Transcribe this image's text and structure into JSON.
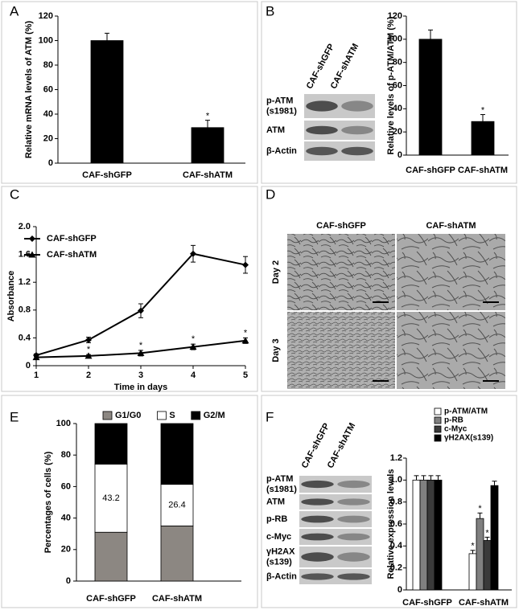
{
  "chart_data": [
    {
      "type": "bar",
      "panel": "A",
      "ylabel": "Relative mRNA  levels of ATM (%)",
      "categories": [
        "CAF-shGFP",
        "CAF-shATM"
      ],
      "values": [
        100,
        29
      ],
      "errors": [
        6,
        6
      ],
      "value_notes": [
        null,
        "*"
      ],
      "color": "#000000",
      "ylim": [
        0,
        120
      ],
      "yticks": [
        0,
        20,
        40,
        60,
        80,
        100,
        120
      ]
    },
    {
      "type": "bar",
      "panel": "B",
      "ylabel": "Relative levels of p-ATM/ATM (%)",
      "categories": [
        "CAF-shGFP",
        "CAF-shATM"
      ],
      "values": [
        100,
        29
      ],
      "errors": [
        8,
        6
      ],
      "value_notes": [
        null,
        "*"
      ],
      "color": "#000000",
      "ylim": [
        0,
        120
      ],
      "yticks": [
        0,
        20,
        40,
        60,
        80,
        100,
        120
      ],
      "blot": {
        "lanes": [
          "CAF-shGFP",
          "CAF-shATM"
        ],
        "rows": [
          [
            "p-ATM",
            "(s1981)"
          ],
          [
            "ATM"
          ],
          [
            "β-Actin"
          ]
        ]
      }
    },
    {
      "type": "line",
      "panel": "C",
      "xlabel": "Time in days",
      "ylabel": "Absorbance",
      "x": [
        1,
        2,
        3,
        4,
        5
      ],
      "series": [
        {
          "name": "CAF-shGFP",
          "color": "#000000",
          "marker": "diamond",
          "values": [
            0.15,
            0.37,
            0.79,
            1.61,
            1.45
          ],
          "errors": [
            0.02,
            0.04,
            0.1,
            0.12,
            0.12
          ]
        },
        {
          "name": "CAF-shATM",
          "color": "#000000",
          "marker": "triangle",
          "values": [
            0.12,
            0.14,
            0.18,
            0.27,
            0.36
          ],
          "errors": [
            0.02,
            0.02,
            0.04,
            0.04,
            0.04
          ],
          "value_notes": [
            null,
            "*",
            "*",
            "*",
            "*"
          ]
        }
      ],
      "xlim": [
        1,
        5
      ],
      "xticks": [
        1,
        2,
        3,
        4,
        5
      ],
      "ylim": [
        0,
        2
      ],
      "yticks": [
        0,
        0.4,
        0.8,
        1.2,
        1.6,
        {
          "value": 2,
          "label": "2.0"
        }
      ],
      "legend": "upper left"
    },
    {
      "type": "micrograph",
      "panel": "D",
      "columns": [
        "CAF-shGFP",
        "CAF-shATM"
      ],
      "rows": [
        "Day 2",
        "Day 3"
      ]
    },
    {
      "type": "stacked_bar",
      "panel": "E",
      "ylabel": "Percentages of cells (%)",
      "categories": [
        "CAF-shGFP",
        "CAF-shATM"
      ],
      "series": [
        {
          "name": "G1/G0",
          "color": "#8c8782",
          "values": [
            31,
            35
          ]
        },
        {
          "name": "S",
          "color": "#ffffff",
          "values": [
            43.2,
            26.4
          ],
          "show_values": true
        },
        {
          "name": "G2/M",
          "color": "#000000",
          "values": [
            25.8,
            38.6
          ]
        }
      ],
      "ylim": [
        0,
        100
      ],
      "yticks": [
        0,
        20,
        40,
        60,
        80,
        100
      ],
      "legend": "top"
    },
    {
      "type": "bar",
      "panel": "F",
      "ylabel": "Relative expression levels",
      "categories": [
        "CAF-shGFP",
        "CAF-shATM"
      ],
      "series": [
        {
          "name": "p-ATM/ATM",
          "color": "#ffffff",
          "values": [
            1.0,
            0.33
          ],
          "errors": [
            0.04,
            0.03
          ],
          "value_notes": [
            null,
            "*"
          ]
        },
        {
          "name": "p-RB",
          "color": "#808080",
          "values": [
            1.0,
            0.65
          ],
          "errors": [
            0.04,
            0.05
          ],
          "value_notes": [
            null,
            "*"
          ]
        },
        {
          "name": "c-Myc",
          "color": "#3a3a3a",
          "values": [
            1.0,
            0.45
          ],
          "errors": [
            0.04,
            0.03
          ],
          "value_notes": [
            null,
            "*"
          ]
        },
        {
          "name": "γH2AX(s139)",
          "color": "#000000",
          "values": [
            1.0,
            0.95
          ],
          "errors": [
            0.04,
            0.04
          ]
        }
      ],
      "ylim": [
        0,
        1.2
      ],
      "yticks": [
        0,
        0.2,
        0.4,
        0.6,
        0.8,
        {
          "value": 1,
          "label": "1.0"
        },
        1.2
      ],
      "legend": "upper right",
      "blot": {
        "lanes": [
          "CAF-shGFP",
          "CAF-shATM"
        ],
        "rows": [
          [
            "p-ATM",
            "(s1981)"
          ],
          [
            "ATM"
          ],
          [
            "p-RB"
          ],
          [
            "c-Myc"
          ],
          [
            "γH2AX",
            "(s139)"
          ],
          [
            "β-Actin"
          ]
        ]
      }
    }
  ]
}
